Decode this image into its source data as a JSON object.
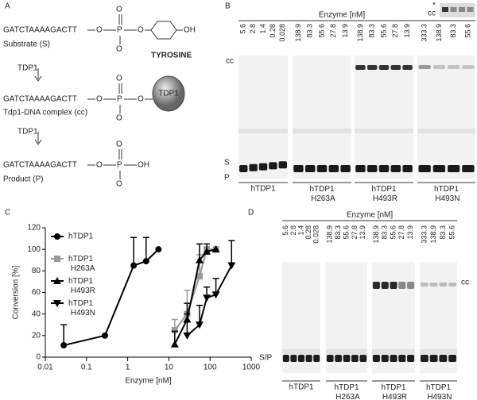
{
  "panel_labels": [
    "A",
    "B",
    "C",
    "D"
  ],
  "scheme": {
    "sequence": "GATCTAAAAGACTT",
    "o": "O",
    "p": "P",
    "oh": "OH",
    "substrate": "Substrate (S)",
    "tyrosine": "TYROSINE",
    "enzyme": "TDP1",
    "complex": "Tdp1-DNA complex (cc)",
    "product": "Product (P)"
  },
  "gel_b": {
    "title": "Enzyme [nM]",
    "lanes": [
      [
        5.6,
        2.8,
        1.4,
        0.28,
        0.028
      ],
      [
        138.9,
        83.3,
        55.6,
        27.8,
        13.9
      ],
      [
        138.9,
        83.3,
        55.6,
        27.8,
        13.9
      ],
      [
        333.3,
        138.9,
        83.3,
        55.6
      ]
    ],
    "groups": [
      "hTDP1",
      "hTDP1 H263A",
      "hTDP1 H493R",
      "hTDP1 H493N"
    ],
    "cc": "cc",
    "s": "S",
    "p": "P",
    "inset_star": "*",
    "inset_cc": "cc"
  },
  "gel_d": {
    "title": "Enzyme [nM]",
    "lanes": [
      [
        5.6,
        2.8,
        1.4,
        0.28,
        0.028
      ],
      [
        138.9,
        83.3,
        55.6,
        27.8,
        13.9
      ],
      [
        138.9,
        83.3,
        55.6,
        27.8,
        13.9
      ],
      [
        333.3,
        138.9,
        83.3,
        55.6
      ]
    ],
    "groups": [
      "hTDP1",
      "hTDP1 H263A",
      "hTDP1 H493R",
      "hTDP1 H493N"
    ],
    "cc": "cc",
    "sp": "S/P"
  },
  "chart_data": {
    "type": "line",
    "xlabel": "Enzyme [nM]",
    "ylabel": "Conversion [%]",
    "xscale": "log",
    "xlim": [
      0.01,
      1000
    ],
    "xticks": [
      0.01,
      0.1,
      1,
      10,
      100,
      1000
    ],
    "ylim": [
      0,
      120
    ],
    "yticks": [
      0,
      20,
      40,
      60,
      80,
      100,
      120
    ],
    "series": [
      {
        "name": "hTDP1",
        "color": "#000000",
        "marker": "circle",
        "x": [
          0.028,
          0.28,
          1.4,
          2.8,
          5.6
        ],
        "values": [
          11,
          20,
          85,
          89,
          100
        ],
        "errors": [
          19,
          null,
          26,
          22,
          null
        ]
      },
      {
        "name": "hTDP1 H263A",
        "color": "#999999",
        "marker": "square",
        "x": [
          13.9,
          27.8,
          55.6,
          83.3,
          138.9
        ],
        "values": [
          25,
          40,
          75,
          100,
          100
        ],
        "errors": [
          10,
          22,
          20,
          null,
          null
        ]
      },
      {
        "name": "hTDP1 H493R",
        "color": "#000000",
        "marker": "triangle-up",
        "x": [
          13.9,
          27.8,
          55.6,
          83.3,
          138.9
        ],
        "values": [
          12,
          35,
          90,
          98,
          100
        ],
        "errors": [
          12,
          15,
          15,
          7,
          null
        ]
      },
      {
        "name": "hTDP1 H493N",
        "color": "#000000",
        "marker": "triangle-down",
        "x": [
          27.8,
          55.6,
          83.3,
          138.9,
          333.3
        ],
        "values": [
          20,
          30,
          55,
          58,
          85
        ],
        "errors": [
          20,
          18,
          10,
          15,
          23
        ]
      }
    ]
  }
}
